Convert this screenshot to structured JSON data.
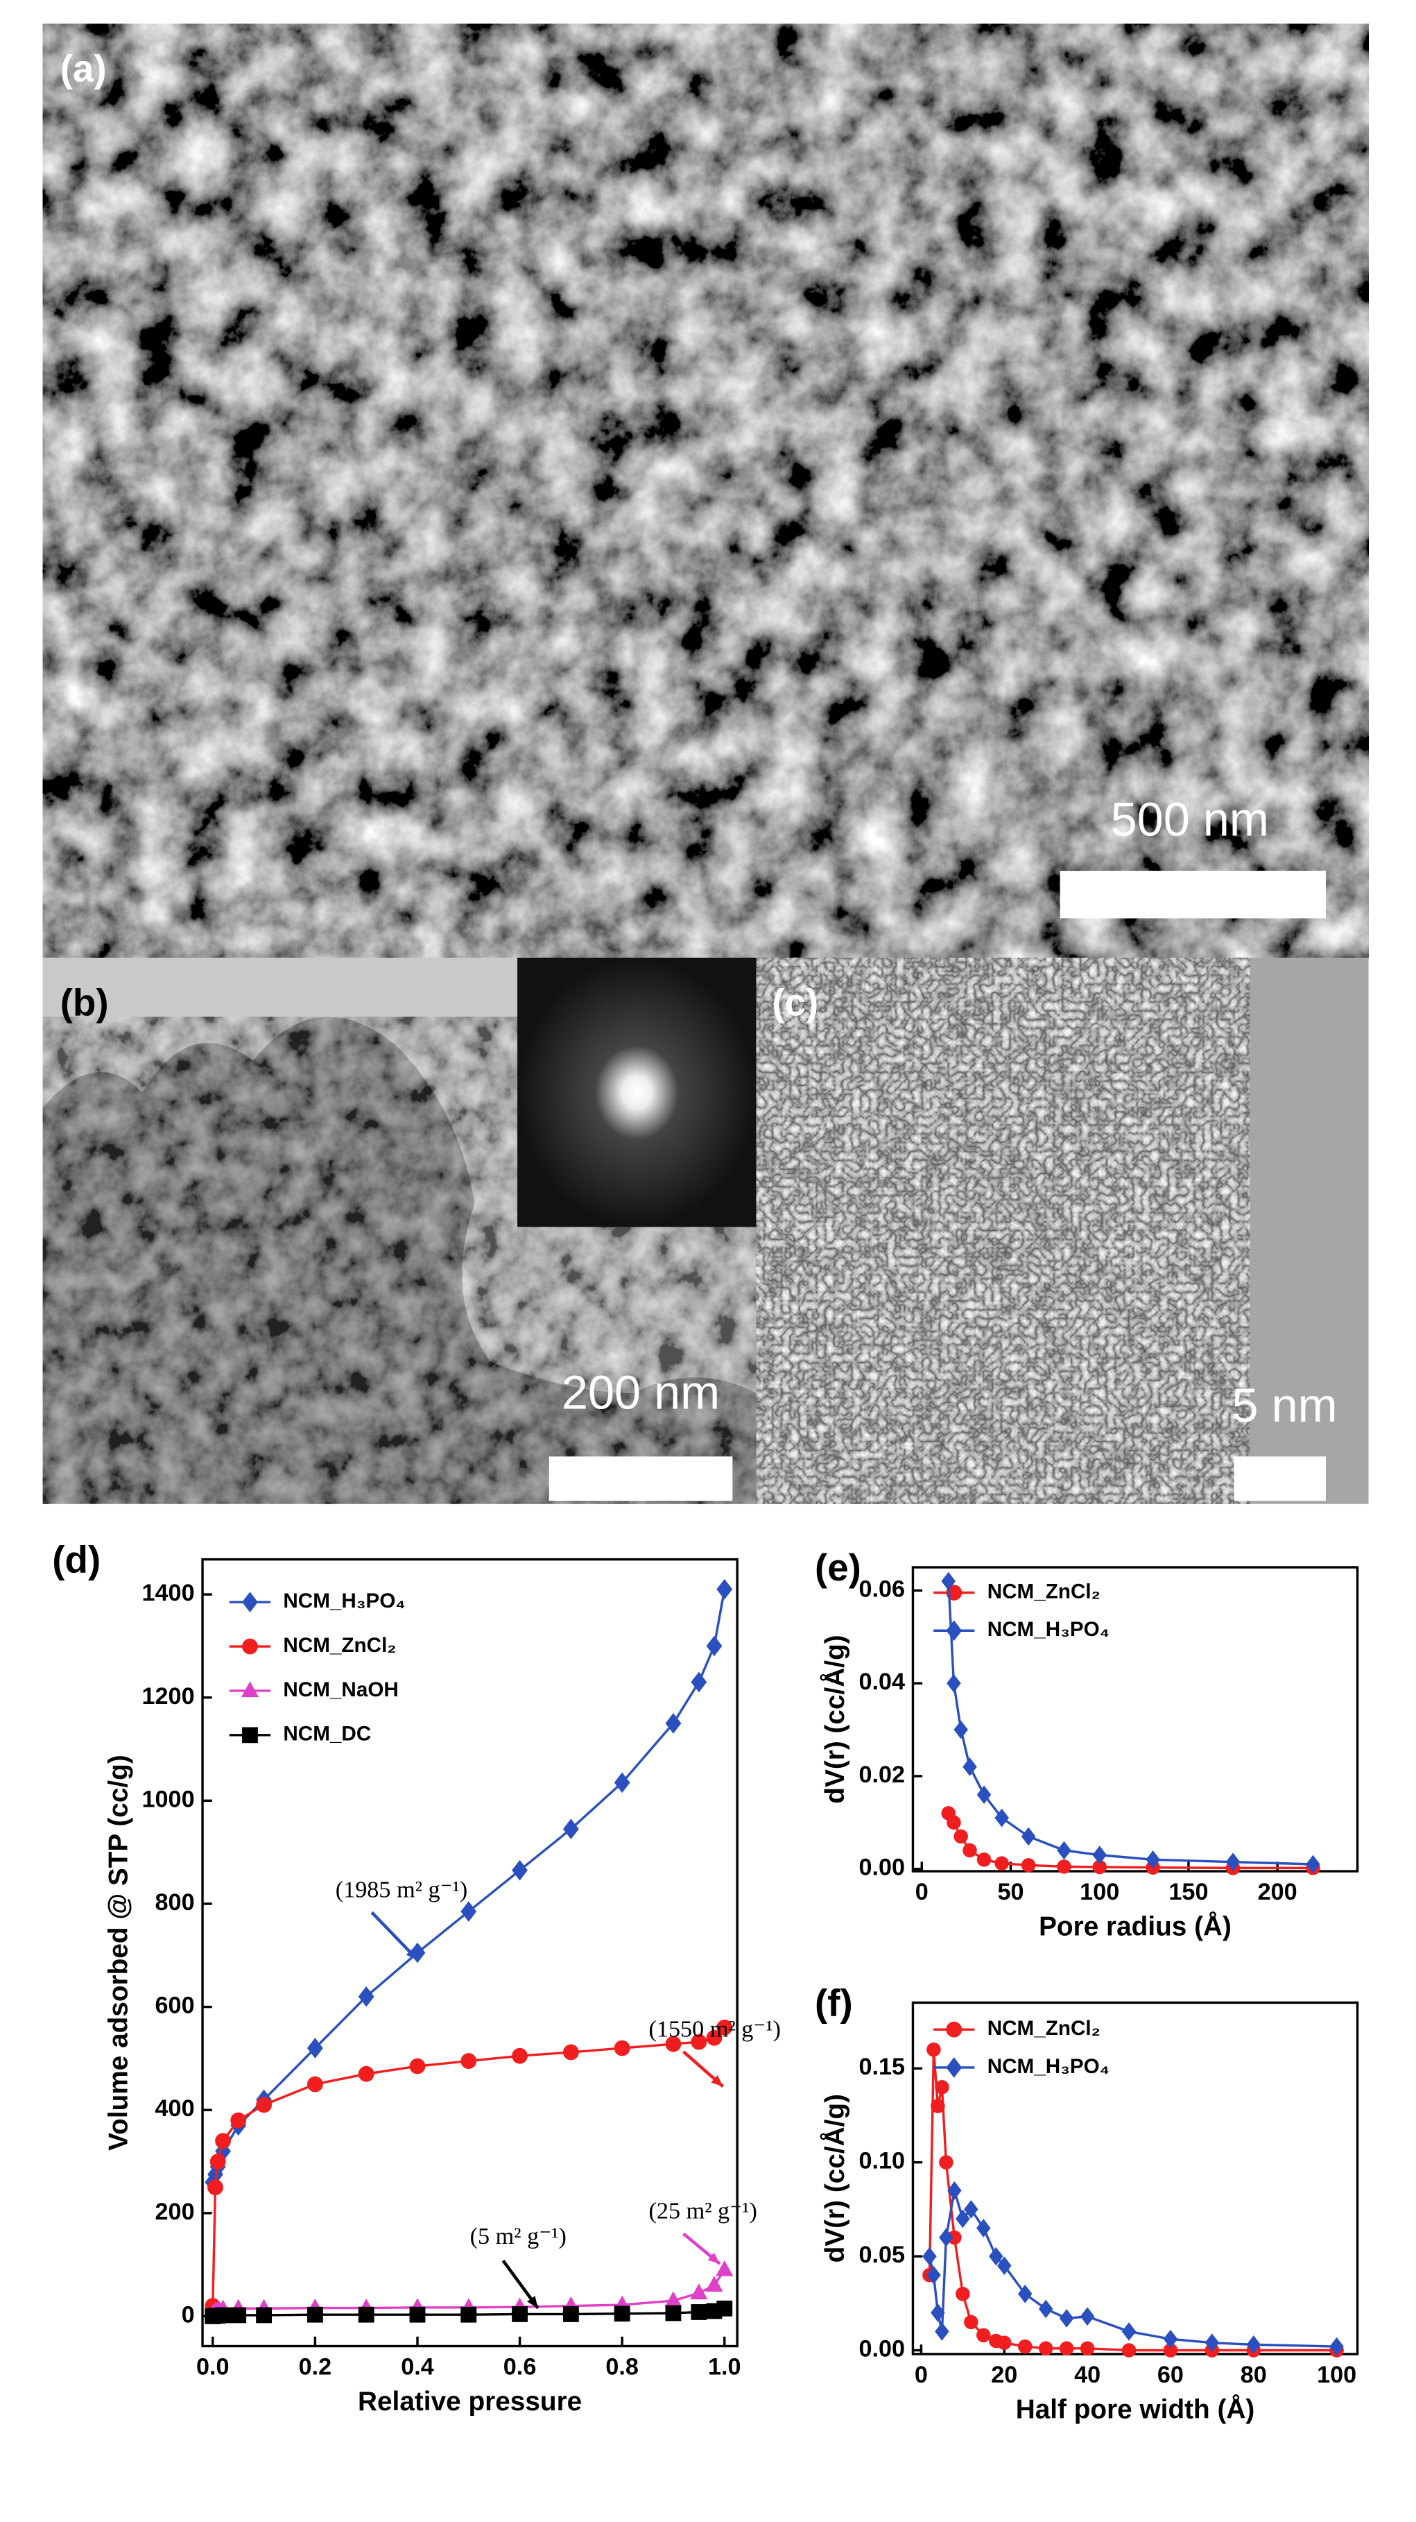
{
  "panels": [
    {
      "label": "(a)",
      "scale_bar": "500 nm"
    },
    {
      "label": "(b)",
      "scale_bar": "200 nm"
    },
    {
      "label": "(c)",
      "scale_bar": "5 nm"
    }
  ],
  "chart_data": [
    {
      "type": "scatter-line",
      "label": "(d)",
      "x_label": "Relative pressure",
      "y_label": "Volume adsorbed @ STP (cc/g)",
      "x": [
        0,
        0.005,
        0.01,
        0.02,
        0.05,
        0.1,
        0.2,
        0.3,
        0.4,
        0.5,
        0.6,
        0.7,
        0.8,
        0.9,
        0.95,
        0.98,
        1.0
      ],
      "series": [
        {
          "name": "NCM_H₃PO₄",
          "color": "#2a4fbf",
          "marker": "diamond",
          "values": [
            260,
            275,
            290,
            320,
            370,
            420,
            520,
            620,
            705,
            785,
            865,
            945,
            1035,
            1150,
            1230,
            1300,
            1410
          ]
        },
        {
          "name": "NCM_ZnCl₂",
          "color": "#f01e1e",
          "marker": "circle",
          "values": [
            20,
            250,
            300,
            340,
            380,
            410,
            450,
            470,
            485,
            495,
            505,
            512,
            520,
            528,
            532,
            540,
            560
          ]
        },
        {
          "name": "NCM_NaOH",
          "color": "#e040c8",
          "marker": "triangle",
          "values": [
            5,
            10,
            12,
            14,
            15,
            15,
            16,
            16,
            17,
            17,
            18,
            20,
            22,
            30,
            45,
            60,
            90
          ]
        },
        {
          "name": "NCM_DC",
          "color": "#000000",
          "marker": "square",
          "values": [
            0,
            1,
            1,
            2,
            2,
            2,
            3,
            3,
            3,
            3,
            4,
            4,
            5,
            6,
            8,
            10,
            15
          ]
        }
      ],
      "annotations": [
        {
          "text": "(1985 m² g⁻¹)",
          "color": "#2a4fbf"
        },
        {
          "text": "(1550 m² g⁻¹)",
          "color": "#f01e1e"
        },
        {
          "text": "(25 m² g⁻¹)",
          "color": "#e040c8"
        },
        {
          "text": "(5 m² g⁻¹)",
          "color": "#000000"
        }
      ],
      "xlim": [
        -0.02,
        1.025
      ],
      "ylim": [
        -58,
        1468
      ],
      "xticks": [
        {
          "value": 0,
          "label": "0.0"
        },
        0.2,
        0.4,
        0.6,
        0.8,
        {
          "value": 1,
          "label": "1.0"
        }
      ],
      "yticks": [
        0,
        200,
        400,
        600,
        800,
        1000,
        1200,
        1400
      ],
      "legend": "upper left"
    },
    {
      "type": "scatter-line",
      "label": "(e)",
      "x_label": "Pore radius (Å)",
      "y_label": "dV(r) (cc/Å/g)",
      "x": [
        15,
        18,
        22,
        27,
        35,
        45,
        60,
        80,
        100,
        130,
        175,
        220
      ],
      "series": [
        {
          "name": "NCM_ZnCl₂",
          "color": "#f01e1e",
          "marker": "circle",
          "values": [
            0.012,
            0.01,
            0.007,
            0.004,
            0.002,
            0.0012,
            0.0008,
            0.0005,
            0.0004,
            0.0003,
            0.0002,
            0.0002
          ]
        },
        {
          "name": "NCM_H₃PO₄",
          "color": "#2a4fbf",
          "marker": "diamond",
          "values": [
            0.062,
            0.04,
            0.03,
            0.022,
            0.016,
            0.011,
            0.007,
            0.004,
            0.003,
            0.002,
            0.0015,
            0.001
          ]
        }
      ],
      "xlim": [
        -5,
        245
      ],
      "ylim": [
        -0.0005,
        0.065
      ],
      "xticks": [
        0,
        50,
        100,
        150,
        200
      ],
      "yticks": [
        {
          "value": 0,
          "label": "0.00"
        },
        {
          "value": 0.02,
          "label": "0.02"
        },
        {
          "value": 0.04,
          "label": "0.04"
        },
        {
          "value": 0.06,
          "label": "0.06"
        }
      ],
      "legend": "upper left"
    },
    {
      "type": "scatter-line",
      "label": "(f)",
      "x_label": "Half pore width (Å)",
      "y_label": "dV(r) (cc/Å/g)",
      "x": [
        2,
        3,
        4,
        5,
        6,
        8,
        10,
        12,
        15,
        18,
        20,
        25,
        30,
        35,
        40,
        50,
        60,
        70,
        80,
        100
      ],
      "series": [
        {
          "name": "NCM_ZnCl₂",
          "color": "#f01e1e",
          "marker": "circle",
          "values": [
            0.04,
            0.16,
            0.13,
            0.14,
            0.1,
            0.06,
            0.03,
            0.015,
            0.008,
            0.005,
            0.004,
            0.002,
            0.001,
            0.001,
            0.001,
            0,
            0,
            0,
            0,
            0
          ]
        },
        {
          "name": "NCM_H₃PO₄",
          "color": "#2a4fbf",
          "marker": "diamond",
          "values": [
            0.05,
            0.04,
            0.02,
            0.01,
            0.06,
            0.085,
            0.07,
            0.075,
            0.065,
            0.05,
            0.045,
            0.03,
            0.022,
            0.017,
            0.018,
            0.01,
            0.006,
            0.004,
            0.003,
            0.002
          ]
        }
      ],
      "xlim": [
        -2,
        105
      ],
      "ylim": [
        -0.002,
        0.185
      ],
      "xticks": [
        0,
        20,
        40,
        60,
        80,
        100
      ],
      "yticks": [
        {
          "value": 0,
          "label": "0.00"
        },
        {
          "value": 0.05,
          "label": "0.05"
        },
        {
          "value": 0.1,
          "label": "0.10"
        },
        {
          "value": 0.15,
          "label": "0.15"
        }
      ],
      "legend": "upper left"
    }
  ]
}
